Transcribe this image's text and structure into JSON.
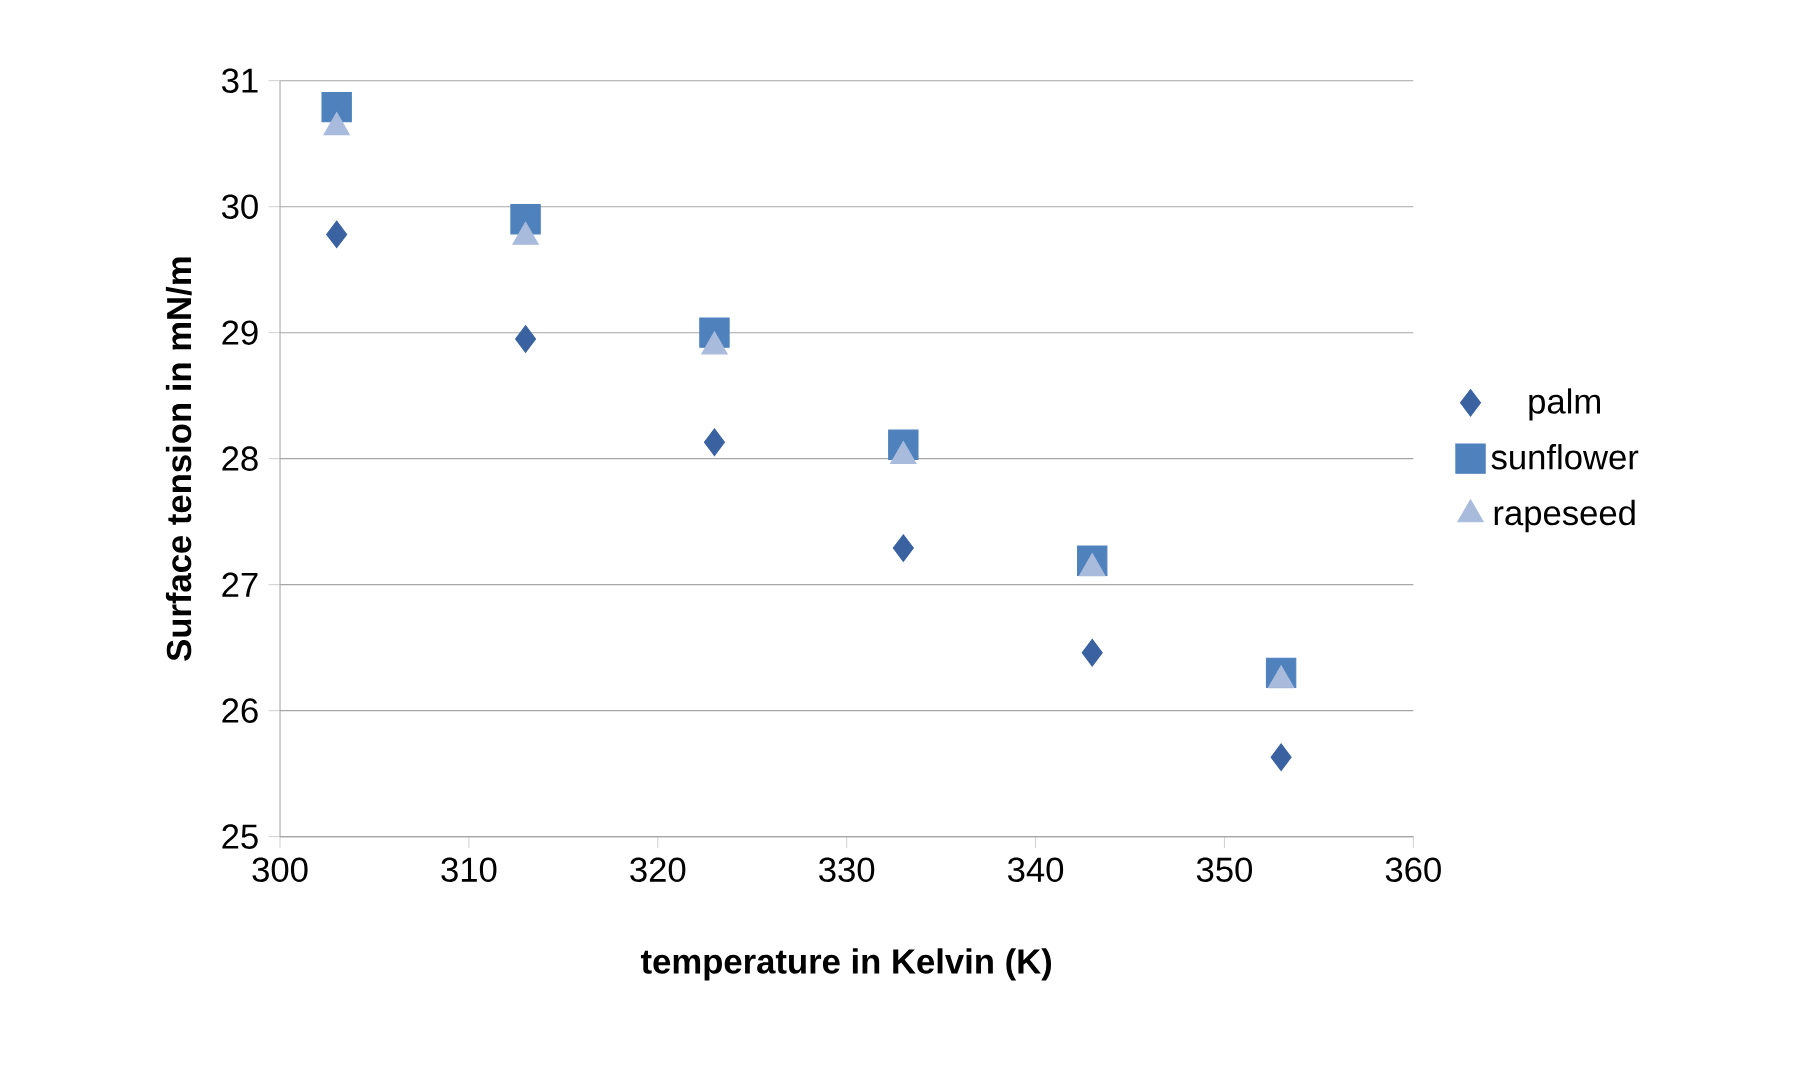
{
  "chart_data": {
    "type": "scatter",
    "xlabel": "temperature in Kelvin (K)",
    "ylabel": "Surface tension in mN/m",
    "x": [
      303,
      313,
      323,
      333,
      343,
      353
    ],
    "series": [
      {
        "name": "palm",
        "color": "#3a62a0",
        "marker": "diamond",
        "values": [
          29.78,
          28.95,
          28.13,
          27.29,
          26.46,
          25.63
        ]
      },
      {
        "name": "sunflower",
        "color": "#4f81bd",
        "marker": "square",
        "values": [
          30.79,
          29.9,
          29.0,
          28.11,
          27.19,
          26.3
        ]
      },
      {
        "name": "rapeseed",
        "color": "#a9bbdc",
        "marker": "triangle",
        "values": [
          30.63,
          29.76,
          28.89,
          28.02,
          27.13,
          26.24
        ]
      }
    ],
    "xlim": [
      300,
      360
    ],
    "xticks": [
      300,
      310,
      320,
      330,
      340,
      350,
      360
    ],
    "ylim": [
      25,
      31
    ],
    "yticks": [
      25,
      26,
      27,
      28,
      29,
      30,
      31
    ],
    "grid": "y",
    "legend": "right"
  }
}
